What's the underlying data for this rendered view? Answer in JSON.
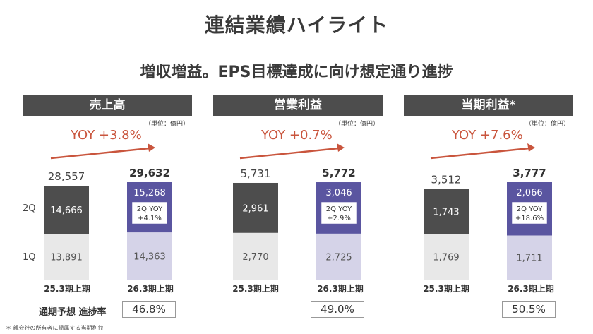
{
  "page": {
    "title": "連結業績ハイライト",
    "subtitle": "増収増益。EPS目標達成に向け想定通り進捗",
    "unit_label": "（単位：億円）",
    "quarter_labels": [
      "2Q",
      "1Q"
    ],
    "progress_label": "通期予想 進捗率",
    "footnote": "＊ 親会社の所有者に帰属する当期利益"
  },
  "colors": {
    "header_bg": "#4d4d4d",
    "prev_2q": "#4d4d4d",
    "prev_1q": "#e8e8e8",
    "curr_2q": "#5a55a0",
    "curr_1q": "#d5d3e8",
    "arrow": "#c9553d"
  },
  "panels": [
    {
      "header": "売上高",
      "yoy": "YOY +3.8%",
      "progress": "46.8%"
    },
    {
      "header": "営業利益",
      "yoy": "YOY +0.7%",
      "progress": "49.0%"
    },
    {
      "header": "当期利益*",
      "yoy": "YOY +7.6%",
      "progress": "50.5%"
    }
  ],
  "chart_data": [
    {
      "type": "bar",
      "title": "売上高",
      "stacked": true,
      "categories": [
        "25.3期上期",
        "26.3期上期"
      ],
      "series": [
        {
          "name": "1Q",
          "values": [
            13891,
            14363
          ]
        },
        {
          "name": "2Q",
          "values": [
            14666,
            15268
          ]
        }
      ],
      "totals": [
        28557,
        29632
      ],
      "total_labels": [
        "28,557",
        "29,632"
      ],
      "value_labels_1q": [
        "13,891",
        "14,363"
      ],
      "value_labels_2q": [
        "14,666",
        "15,268"
      ],
      "yoy_2q_text": [
        "2Q YOY",
        "+4.1%"
      ]
    },
    {
      "type": "bar",
      "title": "営業利益",
      "stacked": true,
      "categories": [
        "25.3期上期",
        "26.3期上期"
      ],
      "series": [
        {
          "name": "1Q",
          "values": [
            2770,
            2725
          ]
        },
        {
          "name": "2Q",
          "values": [
            2961,
            3046
          ]
        }
      ],
      "totals": [
        5731,
        5772
      ],
      "total_labels": [
        "5,731",
        "5,772"
      ],
      "value_labels_1q": [
        "2,770",
        "2,725"
      ],
      "value_labels_2q": [
        "2,961",
        "3,046"
      ],
      "yoy_2q_text": [
        "2Q YOY",
        "+2.9%"
      ]
    },
    {
      "type": "bar",
      "title": "当期利益*",
      "stacked": true,
      "categories": [
        "25.3期上期",
        "26.3期上期"
      ],
      "series": [
        {
          "name": "1Q",
          "values": [
            1769,
            1711
          ]
        },
        {
          "name": "2Q",
          "values": [
            1743,
            2066
          ]
        }
      ],
      "totals": [
        3512,
        3777
      ],
      "total_labels": [
        "3,512",
        "3,777"
      ],
      "value_labels_1q": [
        "1,769",
        "1,711"
      ],
      "value_labels_2q": [
        "1,743",
        "2,066"
      ],
      "yoy_2q_text": [
        "2Q YOY",
        "+18.6%"
      ]
    }
  ]
}
